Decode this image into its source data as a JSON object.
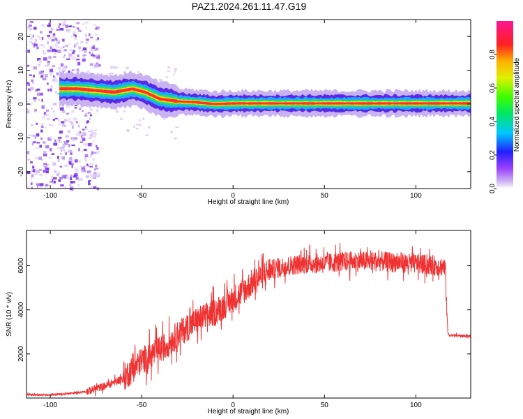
{
  "title": "PAZ1.2024.261.11.47.G19",
  "chart_data": [
    {
      "type": "heatmap",
      "xlabel": "Height of straight line (km)",
      "ylabel": "Frequency (Hz)",
      "xlim": [
        -113,
        130
      ],
      "ylim": [
        -25,
        25
      ],
      "x_ticks": [
        -100,
        -50,
        0,
        50,
        100
      ],
      "y_ticks": [
        -20,
        -10,
        0,
        10,
        20
      ],
      "ridge": [
        {
          "x": -95,
          "y": 4.5
        },
        {
          "x": -85,
          "y": 4.5
        },
        {
          "x": -75,
          "y": 4.0
        },
        {
          "x": -65,
          "y": 3.5
        },
        {
          "x": -55,
          "y": 4.5
        },
        {
          "x": -48,
          "y": 3.5
        },
        {
          "x": -40,
          "y": 1.5
        },
        {
          "x": -30,
          "y": 0.8
        },
        {
          "x": -20,
          "y": 0.5
        },
        {
          "x": -10,
          "y": 0.0
        },
        {
          "x": 0,
          "y": 0.2
        },
        {
          "x": 130,
          "y": 0.2
        }
      ],
      "noise_region": [
        -113,
        -80
      ],
      "colorbar": {
        "label": "Normalized spectral amplitude",
        "ticks": [
          0.0,
          0.2,
          0.4,
          0.6,
          0.8
        ],
        "range": [
          0,
          1
        ]
      }
    },
    {
      "type": "line",
      "xlabel": "Height of straight line (km)",
      "ylabel": "SNR (10 * v/v)",
      "xlim": [
        -113,
        130
      ],
      "ylim": [
        0,
        7600
      ],
      "x_ticks": [
        -100,
        -50,
        0,
        50,
        100
      ],
      "y_ticks": [
        2000,
        4000,
        6000
      ],
      "color": "#ef3232",
      "series": [
        {
          "x": [
            -113,
            -100,
            -90,
            -80,
            -70,
            -60,
            -55,
            -50,
            -45,
            -40,
            -35,
            -30,
            -25,
            -20,
            -15,
            -10,
            -5,
            0,
            5,
            10,
            15,
            20,
            25,
            30,
            40,
            50,
            60,
            70,
            80,
            90,
            100,
            110,
            116,
            117.5,
            118,
            130
          ],
          "y": [
            150,
            150,
            200,
            300,
            550,
            900,
            1300,
            1700,
            1950,
            2200,
            2500,
            2900,
            3200,
            3500,
            3700,
            3900,
            4200,
            4500,
            4800,
            5200,
            5500,
            5800,
            5900,
            6000,
            6100,
            6100,
            6200,
            6200,
            6200,
            6150,
            6100,
            6000,
            5950,
            2950,
            2850,
            2800
          ]
        }
      ]
    }
  ]
}
